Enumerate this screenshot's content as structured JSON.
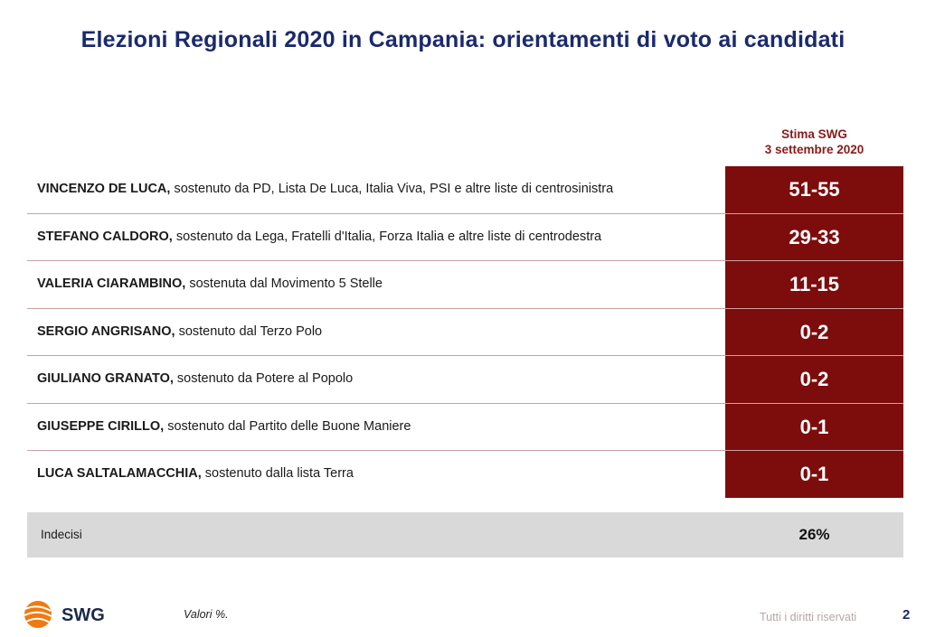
{
  "title": "Elezioni Regionali 2020 in Campania: orientamenti di voto ai candidati",
  "column_header": {
    "line1": "Stima SWG",
    "line2": "3 settembre 2020"
  },
  "chart_data": {
    "type": "table",
    "columns": [
      "",
      "Stima SWG 3 settembre 2020"
    ],
    "rows": [
      {
        "name": "VINCENZO DE LUCA,",
        "desc": " sostenuto da PD, Lista De Luca, Italia Viva, PSI e altre liste di centrosinistra",
        "value": "51-55"
      },
      {
        "name": "STEFANO CALDORO,",
        "desc": " sostenuto da Lega, Fratelli d'Italia, Forza Italia e altre liste di centrodestra",
        "value": "29-33"
      },
      {
        "name": "VALERIA CIARAMBINO,",
        "desc": " sostenuta dal Movimento 5 Stelle",
        "value": "11-15"
      },
      {
        "name": "SERGIO ANGRISANO,",
        "desc": " sostenuto dal Terzo Polo",
        "value": "0-2"
      },
      {
        "name": "GIULIANO GRANATO,",
        "desc": " sostenuto da Potere al Popolo",
        "value": "0-2"
      },
      {
        "name": "GIUSEPPE CIRILLO,",
        "desc": " sostenuto dal Partito delle Buone Maniere",
        "value": "0-1"
      },
      {
        "name": "LUCA SALTALAMACCHIA,",
        "desc": " sostenuto dalla lista Terra",
        "value": "0-1"
      }
    ],
    "undecided": {
      "label": "Indecisi",
      "value": "26%"
    }
  },
  "colors": {
    "title": "#1a2a6c",
    "value_cell": "#7d0c0c",
    "header": "#8b1a1a",
    "undecided_bg": "#d9d9d9"
  },
  "footer": {
    "logo_text": "SWG",
    "note": "Valori %.",
    "rights": "Tutti i diritti riservati",
    "page": "2"
  }
}
